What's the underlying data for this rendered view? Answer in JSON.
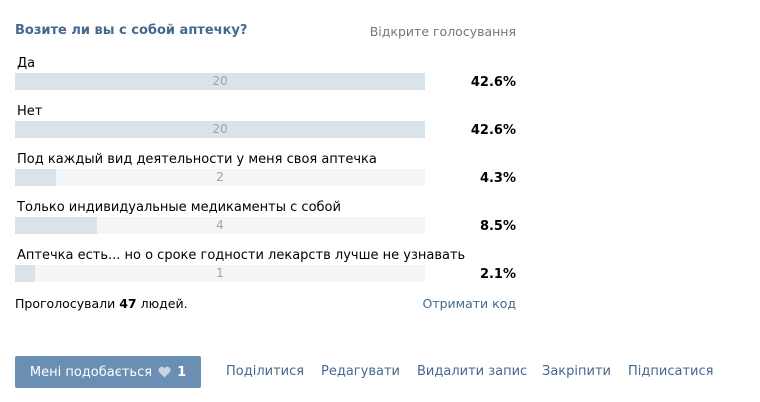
{
  "poll": {
    "title": "Возите ли вы с собой аптечку?",
    "type_label": "Відкрите голосування",
    "options": [
      {
        "label": "Да",
        "count": "20",
        "percent": "42.6%",
        "fraction": 0.426
      },
      {
        "label": "Нет",
        "count": "20",
        "percent": "42.6%",
        "fraction": 0.426
      },
      {
        "label": "Под каждый вид деятельности у меня своя аптечка",
        "count": "2",
        "percent": "4.3%",
        "fraction": 0.043
      },
      {
        "label": "Только индивидуальные медикаменты с собой",
        "count": "4",
        "percent": "8.5%",
        "fraction": 0.085
      },
      {
        "label": "Аптечка есть... но о сроке годности лекарств лучше не узнавать",
        "count": "1",
        "percent": "2.1%",
        "fraction": 0.021
      }
    ],
    "voted_prefix": "Проголосували",
    "voted_count": "47",
    "voted_suffix": "людей.",
    "get_code_label": "Отримати код"
  },
  "actions": {
    "like_label": "Мені подобається",
    "like_count": "1",
    "share_label": "Поділитися",
    "edit_label": "Редагувати",
    "delete_label": "Видалити запис",
    "pin_label": "Закріпити",
    "subscribe_label": "Підписатися"
  },
  "colors": {
    "accent": "#45688e",
    "bar_bg": "#f4f5f7",
    "bar_fill": "#dae2ea",
    "like_button": "#6a8fb2"
  },
  "icons": {
    "like": "heart-icon"
  }
}
